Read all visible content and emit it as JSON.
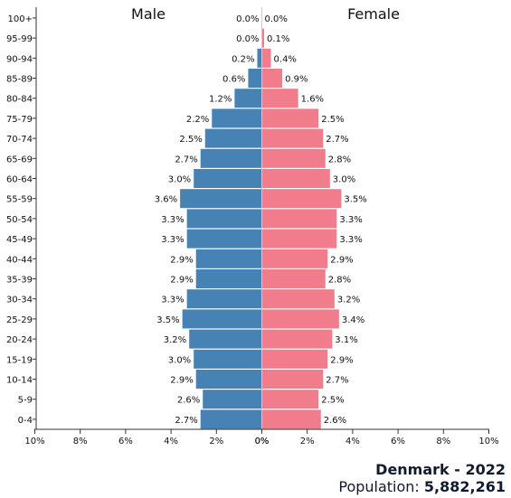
{
  "chart_data": {
    "type": "bar",
    "orientation": "horizontal-back-to-back",
    "categories": [
      "0-4",
      "5-9",
      "10-14",
      "15-19",
      "20-24",
      "25-29",
      "30-34",
      "35-39",
      "40-44",
      "45-49",
      "50-54",
      "55-59",
      "60-64",
      "65-69",
      "70-74",
      "75-79",
      "80-84",
      "85-89",
      "90-94",
      "95-99",
      "100+"
    ],
    "series": [
      {
        "name": "Male",
        "color": "#4682b4",
        "values": [
          2.7,
          2.6,
          2.9,
          3.0,
          3.2,
          3.5,
          3.3,
          2.9,
          2.9,
          3.3,
          3.3,
          3.6,
          3.0,
          2.7,
          2.5,
          2.2,
          1.2,
          0.6,
          0.2,
          0.0,
          0.0
        ],
        "labels": [
          "2.7%",
          "2.6%",
          "2.9%",
          "3.0%",
          "3.2%",
          "3.5%",
          "3.3%",
          "2.9%",
          "2.9%",
          "3.3%",
          "3.3%",
          "3.6%",
          "3.0%",
          "2.7%",
          "2.5%",
          "2.2%",
          "1.2%",
          "0.6%",
          "0.2%",
          "0.0%",
          "0.0%"
        ]
      },
      {
        "name": "Female",
        "color": "#f07c8c",
        "values": [
          2.6,
          2.5,
          2.7,
          2.9,
          3.1,
          3.4,
          3.2,
          2.8,
          2.9,
          3.3,
          3.3,
          3.5,
          3.0,
          2.8,
          2.7,
          2.5,
          1.6,
          0.9,
          0.4,
          0.1,
          0.0
        ],
        "labels": [
          "2.6%",
          "2.5%",
          "2.7%",
          "2.9%",
          "3.1%",
          "3.4%",
          "3.2%",
          "2.8%",
          "2.9%",
          "3.3%",
          "3.3%",
          "3.5%",
          "3.0%",
          "2.8%",
          "2.7%",
          "2.5%",
          "1.6%",
          "0.9%",
          "0.4%",
          "0.1%",
          "0.0%"
        ]
      }
    ],
    "xlim": [
      0,
      10
    ],
    "xticks": [
      10,
      8,
      6,
      4,
      2,
      0
    ],
    "xtick_labels_left": [
      "10%",
      "8%",
      "6%",
      "4%",
      "2%",
      "0%"
    ],
    "xtick_labels_right": [
      "0%",
      "2%",
      "4%",
      "6%",
      "8%",
      "10%"
    ],
    "grid": false
  },
  "caption": {
    "country_year": "Denmark - 2022",
    "population_label": "Population: ",
    "population_value": "5,882,261"
  }
}
